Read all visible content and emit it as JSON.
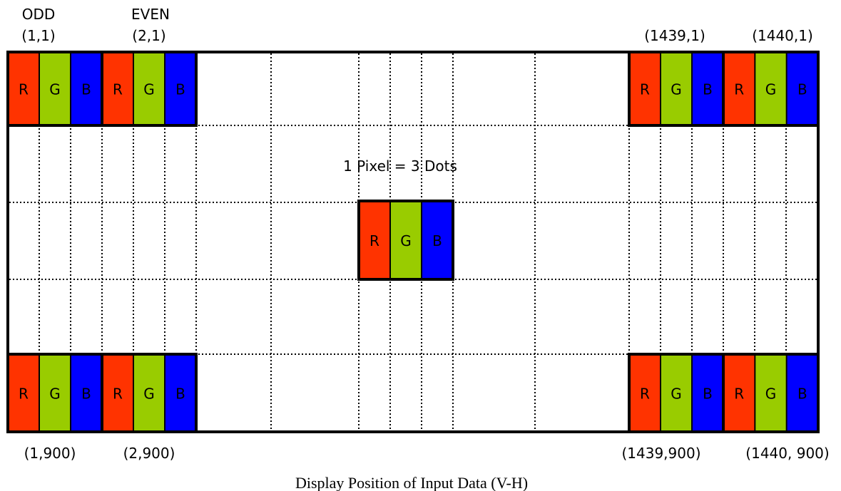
{
  "labels": {
    "odd": "ODD",
    "even": "EVEN",
    "pos_top_1": "(1,1)",
    "pos_top_2": "(2,1)",
    "pos_top_1439": "(1439,1)",
    "pos_top_1440": "(1440,1)",
    "pos_bot_1": "(1,900)",
    "pos_bot_2": "(2,900)",
    "pos_bot_1439": "(1439,900)",
    "pos_bot_1440": "(1440, 900)",
    "pixel_note": "1 Pixel = 3 Dots",
    "caption": "Display Position of Input Data (V-H)"
  },
  "dots": {
    "r": "R",
    "g": "G",
    "b": "B"
  },
  "colors": {
    "red": "#FF3300",
    "green": "#99CC00",
    "blue": "#0000FF",
    "red_text": "#000000",
    "green_text": "#000000",
    "blue_text": "#000000"
  }
}
